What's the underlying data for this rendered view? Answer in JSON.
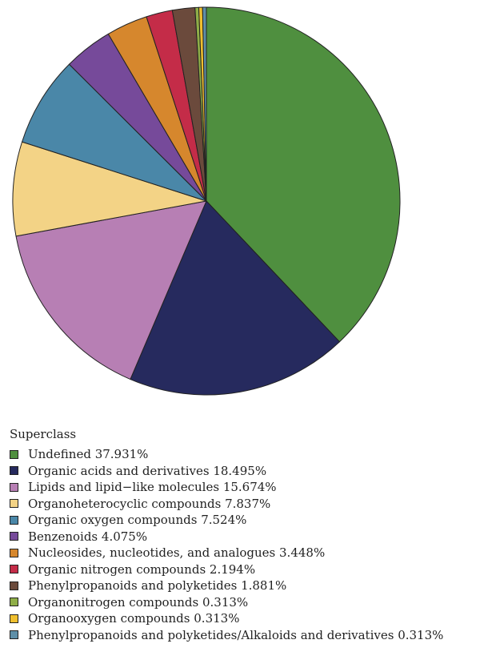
{
  "chart_data": {
    "type": "pie",
    "title": "",
    "legend_title": "Superclass",
    "legend_position": "bottom-left",
    "start_angle_deg": 0,
    "direction": "clockwise",
    "slices": [
      {
        "label": "Undefined",
        "value": 37.931,
        "color": "#4f8f3f"
      },
      {
        "label": "Organic acids and derivatives",
        "value": 18.495,
        "color": "#262a5e"
      },
      {
        "label": "Lipids and lipid−like molecules",
        "value": 15.674,
        "color": "#b77fb4"
      },
      {
        "label": "Organoheterocyclic compounds",
        "value": 7.837,
        "color": "#f3d386"
      },
      {
        "label": "Organic oxygen compounds",
        "value": 7.524,
        "color": "#4a87a8"
      },
      {
        "label": "Benzenoids",
        "value": 4.075,
        "color": "#764a9a"
      },
      {
        "label": "Nucleosides, nucleotides, and analogues",
        "value": 3.448,
        "color": "#d6872d"
      },
      {
        "label": "Organic nitrogen compounds",
        "value": 2.194,
        "color": "#c42c48"
      },
      {
        "label": "Phenylpropanoids and polyketides",
        "value": 1.881,
        "color": "#6b4a3c"
      },
      {
        "label": "Organonitrogen compounds",
        "value": 0.313,
        "color": "#8fae48"
      },
      {
        "label": "Organooxygen compounds",
        "value": 0.313,
        "color": "#efbf2f"
      },
      {
        "label": "Phenylpropanoids and polyketides/Alkaloids and derivatives",
        "value": 0.313,
        "color": "#5e8fa8"
      }
    ],
    "legend_labels": [
      "Undefined 37.931%",
      "Organic acids and derivatives 18.495%",
      "Lipids and lipid−like molecules 15.674%",
      "Organoheterocyclic compounds 7.837%",
      "Organic oxygen compounds 7.524%",
      "Benzenoids 4.075%",
      "Nucleosides, nucleotides, and analogues 3.448%",
      "Organic nitrogen compounds 2.194%",
      "Phenylpropanoids and polyketides 1.881%",
      "Organonitrogen compounds 0.313%",
      "Organooxygen compounds 0.313%",
      "Phenylpropanoids and polyketides/Alkaloids and derivatives 0.313%"
    ]
  }
}
